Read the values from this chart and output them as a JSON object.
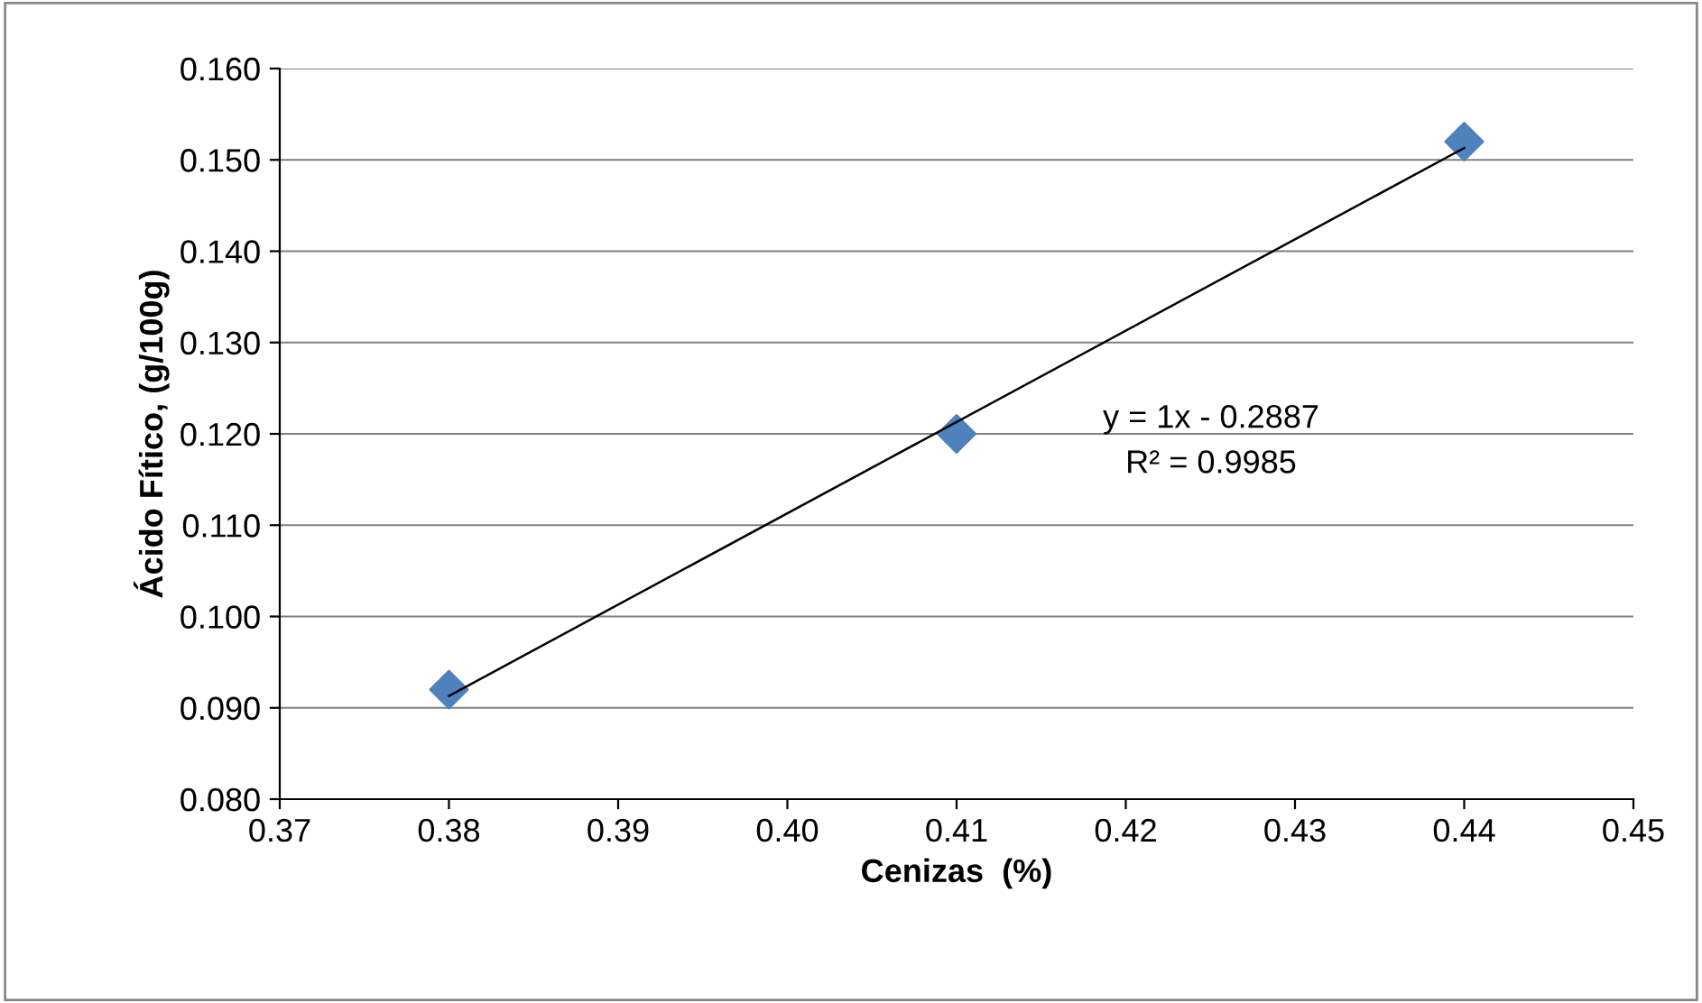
{
  "chart_data": {
    "type": "scatter",
    "xlabel": "Cenizas  (%)",
    "ylabel": "Ácido Fítico, (g/100g)",
    "x": [
      0.38,
      0.41,
      0.44
    ],
    "series": [
      {
        "color": "#4f81bd",
        "values": [
          0.092,
          0.12,
          0.152
        ],
        "marker": "diamond"
      },
      {
        "type": "line",
        "color": "#000000",
        "x": [
          0.38,
          0.44
        ],
        "values": [
          0.0913,
          0.1513
        ],
        "marker": "none",
        "line_style": "solid"
      }
    ],
    "annotations": [
      "y = 1x - 0.2887",
      "R² = 0.9985"
    ],
    "xlim": [
      0.37,
      0.45
    ],
    "xticks": [
      {
        "value": 0.37,
        "label": "0.37"
      },
      {
        "value": 0.38,
        "label": "0.38"
      },
      {
        "value": 0.39,
        "label": "0.39"
      },
      {
        "value": 0.4,
        "label": "0.40"
      },
      {
        "value": 0.41,
        "label": "0.41"
      },
      {
        "value": 0.42,
        "label": "0.42"
      },
      {
        "value": 0.43,
        "label": "0.43"
      },
      {
        "value": 0.44,
        "label": "0.44"
      },
      {
        "value": 0.45,
        "label": "0.45"
      }
    ],
    "ylim": [
      0.08,
      0.16
    ],
    "yticks": [
      {
        "value": 0.08,
        "label": "0.080"
      },
      {
        "value": 0.09,
        "label": "0.090"
      },
      {
        "value": 0.1,
        "label": "0.100"
      },
      {
        "value": 0.11,
        "label": "0.110"
      },
      {
        "value": 0.12,
        "label": "0.120"
      },
      {
        "value": 0.13,
        "label": "0.130"
      },
      {
        "value": 0.14,
        "label": "0.140"
      },
      {
        "value": 0.15,
        "label": "0.150"
      },
      {
        "value": 0.16,
        "label": "0.160"
      }
    ],
    "grid": "y",
    "legend": false
  }
}
